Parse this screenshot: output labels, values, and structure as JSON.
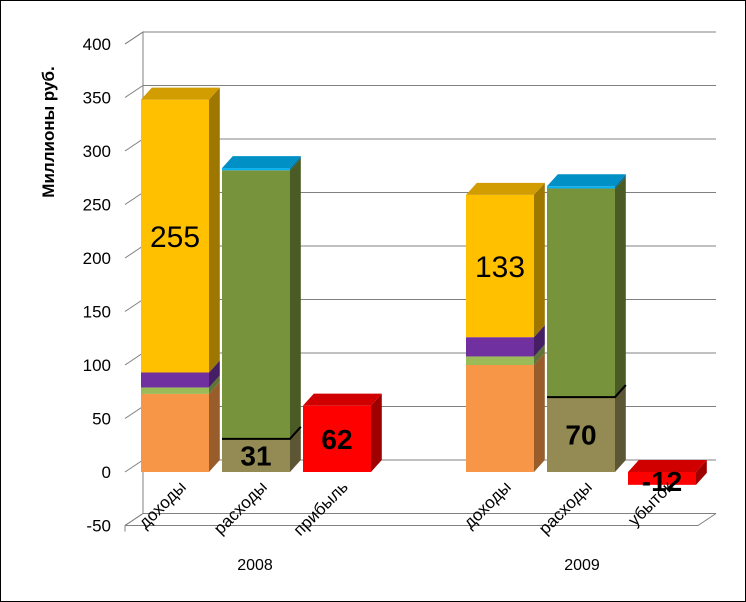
{
  "chart_data": {
    "type": "bar",
    "stacked": true,
    "three_d": true,
    "ylabel": "Миллионы руб.",
    "ylim": [
      -50,
      400
    ],
    "yticks": [
      "-50",
      "0",
      "50",
      "100",
      "150",
      "200",
      "250",
      "300",
      "350",
      "400"
    ],
    "grid": true,
    "legend": "none",
    "groups": [
      {
        "label": "2008",
        "bars": [
          {
            "category": "доходы",
            "segments": [
              {
                "value": 73,
                "color": "#F79646"
              },
              {
                "value": 6,
                "color": "#9BBB59"
              },
              {
                "value": 14,
                "color": "#7030A0"
              },
              {
                "value": 255,
                "color": "#FFC000",
                "label": "255"
              }
            ]
          },
          {
            "category": "расходы",
            "segments": [
              {
                "value": 31,
                "color": "#948A54",
                "label": "31"
              },
              {
                "value": 251,
                "color": "#77933C"
              },
              {
                "value": 2,
                "color": "#00B0F0"
              }
            ]
          },
          {
            "category": "прибыль",
            "segments": [
              {
                "value": 62,
                "color": "#FF0000",
                "label": "62"
              }
            ]
          }
        ]
      },
      {
        "label": "2009",
        "bars": [
          {
            "category": "доходы",
            "segments": [
              {
                "value": 100,
                "color": "#F79646"
              },
              {
                "value": 8,
                "color": "#9BBB59"
              },
              {
                "value": 18,
                "color": "#7030A0"
              },
              {
                "value": 133,
                "color": "#FFC000",
                "label": "133"
              }
            ]
          },
          {
            "category": "расходы",
            "segments": [
              {
                "value": 70,
                "color": "#948A54",
                "label": "70"
              },
              {
                "value": 195,
                "color": "#77933C"
              },
              {
                "value": 2,
                "color": "#00B0F0"
              }
            ]
          },
          {
            "category": "убыток",
            "segments": [
              {
                "value": -12,
                "color": "#FF0000",
                "label": "-12"
              }
            ]
          }
        ]
      }
    ]
  }
}
